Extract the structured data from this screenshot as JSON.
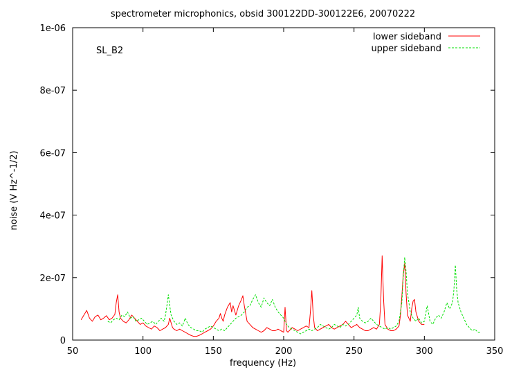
{
  "chart_data": {
    "type": "line",
    "title": "spectrometer microphonics, obsid 300122DD-300122E6, 20070222",
    "xlabel": "frequency (Hz)",
    "ylabel": "noise (V Hz^-1/2)",
    "annotation": "SL_B2",
    "xlim": [
      50,
      350
    ],
    "ylim": [
      0,
      1e-06
    ],
    "x_ticks": [
      50,
      100,
      150,
      200,
      250,
      300,
      350
    ],
    "x_tick_labels": [
      "50",
      "100",
      "150",
      "200",
      "250",
      "300",
      "350"
    ],
    "y_ticks": [
      0,
      2e-07,
      4e-07,
      6e-07,
      8e-07,
      1e-06
    ],
    "y_tick_labels": [
      "0",
      "2e-07",
      "4e-07",
      "6e-07",
      "8e-07",
      "1e-06"
    ],
    "grid": false,
    "legend_position": "top-right",
    "series": [
      {
        "name": "lower sideband",
        "color": "#ff0000",
        "style": "solid",
        "x": [
          56,
          58,
          60,
          62,
          64,
          66,
          68,
          70,
          72,
          74,
          76,
          78,
          80,
          81,
          82,
          83,
          84,
          86,
          88,
          90,
          92,
          94,
          96,
          98,
          100,
          102,
          104,
          106,
          108,
          110,
          112,
          114,
          116,
          118,
          119,
          120,
          121,
          122,
          124,
          126,
          128,
          130,
          132,
          134,
          136,
          138,
          140,
          142,
          144,
          146,
          148,
          150,
          152,
          154,
          155,
          156,
          157,
          158,
          160,
          162,
          163,
          164,
          166,
          168,
          170,
          171,
          172,
          174,
          176,
          178,
          180,
          182,
          184,
          186,
          188,
          190,
          192,
          194,
          196,
          198,
          200,
          201,
          202,
          203,
          204,
          206,
          208,
          210,
          212,
          214,
          216,
          218,
          219,
          220,
          221,
          222,
          224,
          226,
          228,
          230,
          232,
          234,
          236,
          238,
          240,
          242,
          244,
          246,
          248,
          250,
          252,
          254,
          256,
          258,
          260,
          262,
          264,
          266,
          268,
          269,
          270,
          271,
          272,
          274,
          276,
          278,
          280,
          282,
          283,
          284,
          285,
          286,
          287,
          288,
          290,
          291,
          292,
          293,
          294,
          296,
          298,
          300
        ],
        "y": [
          6.5e-08,
          8e-08,
          9.5e-08,
          7e-08,
          6e-08,
          7.5e-08,
          8e-08,
          6.5e-08,
          7e-08,
          7.8e-08,
          6.5e-08,
          7e-08,
          8.2e-08,
          1.2e-07,
          1.45e-07,
          9e-08,
          7e-08,
          6e-08,
          5.5e-08,
          6.5e-08,
          8e-08,
          7e-08,
          6e-08,
          5e-08,
          5.5e-08,
          4.5e-08,
          4e-08,
          3.5e-08,
          4.5e-08,
          4e-08,
          3e-08,
          3.5e-08,
          4e-08,
          5e-08,
          7e-08,
          5.5e-08,
          4e-08,
          3.5e-08,
          3e-08,
          3.5e-08,
          3e-08,
          2.5e-08,
          2e-08,
          1.5e-08,
          1.2e-08,
          1.2e-08,
          1.5e-08,
          2e-08,
          2.5e-08,
          3e-08,
          3.5e-08,
          4.5e-08,
          6e-08,
          7e-08,
          8.5e-08,
          7e-08,
          6e-08,
          8e-08,
          1.05e-07,
          1.2e-07,
          9e-08,
          1.1e-07,
          8e-08,
          1.1e-07,
          1.3e-07,
          1.42e-07,
          1.1e-07,
          6e-08,
          5e-08,
          4e-08,
          3.5e-08,
          3e-08,
          2.5e-08,
          3e-08,
          4e-08,
          3.5e-08,
          3e-08,
          3e-08,
          3.5e-08,
          3e-08,
          2.5e-08,
          1.05e-07,
          3e-08,
          2.5e-08,
          3e-08,
          4e-08,
          3.5e-08,
          3e-08,
          3.5e-08,
          4e-08,
          4.5e-08,
          4e-08,
          9e-08,
          1.58e-07,
          8e-08,
          4e-08,
          3e-08,
          3.5e-08,
          4e-08,
          4.5e-08,
          5e-08,
          4e-08,
          3.5e-08,
          4e-08,
          4.5e-08,
          5e-08,
          6e-08,
          5e-08,
          4e-08,
          4.5e-08,
          5e-08,
          4e-08,
          3.5e-08,
          3e-08,
          3e-08,
          3.5e-08,
          4e-08,
          3.5e-08,
          5e-08,
          1.2e-07,
          2.7e-07,
          1.3e-07,
          5e-08,
          3.5e-08,
          3e-08,
          3e-08,
          3.5e-08,
          4.5e-08,
          8e-08,
          1.4e-07,
          2.1e-07,
          2.45e-07,
          1.5e-07,
          8e-08,
          6e-08,
          1e-07,
          1.25e-07,
          1.3e-07,
          9e-08,
          6e-08,
          5e-08,
          5e-08
        ]
      },
      {
        "name": "upper sideband",
        "color": "#00e000",
        "style": "dashed",
        "x": [
          75,
          77,
          79,
          81,
          83,
          85,
          87,
          89,
          91,
          93,
          95,
          97,
          99,
          101,
          103,
          105,
          107,
          109,
          111,
          113,
          115,
          116,
          117,
          118,
          119,
          120,
          122,
          124,
          126,
          128,
          130,
          132,
          134,
          136,
          138,
          140,
          142,
          144,
          146,
          148,
          150,
          152,
          154,
          156,
          158,
          160,
          162,
          164,
          166,
          168,
          170,
          172,
          174,
          176,
          178,
          180,
          182,
          184,
          186,
          188,
          190,
          192,
          194,
          196,
          198,
          200,
          202,
          204,
          206,
          208,
          210,
          212,
          214,
          216,
          218,
          220,
          222,
          224,
          226,
          228,
          230,
          232,
          234,
          236,
          238,
          240,
          242,
          244,
          246,
          248,
          250,
          252,
          253,
          254,
          256,
          258,
          260,
          262,
          264,
          266,
          268,
          270,
          272,
          274,
          276,
          278,
          280,
          282,
          284,
          285,
          286,
          287,
          288,
          290,
          292,
          294,
          296,
          298,
          300,
          302,
          304,
          306,
          308,
          310,
          312,
          314,
          316,
          318,
          320,
          321,
          322,
          323,
          324,
          326,
          328,
          330,
          332,
          334,
          336,
          338,
          340
        ],
        "y": [
          6e-08,
          5.5e-08,
          6.5e-08,
          7e-08,
          6.5e-08,
          8e-08,
          7.5e-08,
          9e-08,
          7e-08,
          7.5e-08,
          6e-08,
          6.5e-08,
          7e-08,
          6e-08,
          5e-08,
          5.5e-08,
          6e-08,
          5e-08,
          6e-08,
          7e-08,
          6e-08,
          8e-08,
          1.1e-07,
          1.45e-07,
          1.1e-07,
          8e-08,
          6e-08,
          5e-08,
          5.5e-08,
          4.5e-08,
          7e-08,
          5e-08,
          4e-08,
          3.5e-08,
          3e-08,
          3e-08,
          2.5e-08,
          3.5e-08,
          4e-08,
          4.5e-08,
          4e-08,
          3.5e-08,
          3e-08,
          3.5e-08,
          3e-08,
          4e-08,
          5e-08,
          6e-08,
          7e-08,
          7.5e-08,
          8e-08,
          9e-08,
          1.05e-07,
          1.1e-07,
          1.3e-07,
          1.45e-07,
          1.2e-07,
          1.05e-07,
          1.35e-07,
          1.2e-07,
          1.1e-07,
          1.3e-07,
          1.05e-07,
          9e-08,
          8e-08,
          7e-08,
          5e-08,
          4e-08,
          3.5e-08,
          3e-08,
          2.5e-08,
          2e-08,
          2.5e-08,
          3e-08,
          3.5e-08,
          3e-08,
          3.5e-08,
          4e-08,
          5e-08,
          4.5e-08,
          4e-08,
          3.5e-08,
          4e-08,
          5e-08,
          4.5e-08,
          4e-08,
          5e-08,
          4.5e-08,
          5e-08,
          6e-08,
          7e-08,
          8e-08,
          1.05e-07,
          7e-08,
          6e-08,
          5.5e-08,
          6e-08,
          7e-08,
          6e-08,
          5e-08,
          4.5e-08,
          4e-08,
          3.5e-08,
          4e-08,
          3.5e-08,
          4e-08,
          4.5e-08,
          6e-08,
          1.2e-07,
          2e-07,
          2.65e-07,
          2.2e-07,
          1.5e-07,
          9e-08,
          7e-08,
          6e-08,
          7e-08,
          5.5e-08,
          6e-08,
          1.1e-07,
          6e-08,
          5e-08,
          7e-08,
          8e-08,
          7e-08,
          9e-08,
          1.2e-07,
          1e-07,
          1.2e-07,
          1.6e-07,
          2.4e-07,
          1.6e-07,
          1.2e-07,
          9e-08,
          7e-08,
          5e-08,
          4e-08,
          3e-08,
          3.5e-08,
          2.5e-08,
          2.5e-08
        ]
      }
    ]
  }
}
